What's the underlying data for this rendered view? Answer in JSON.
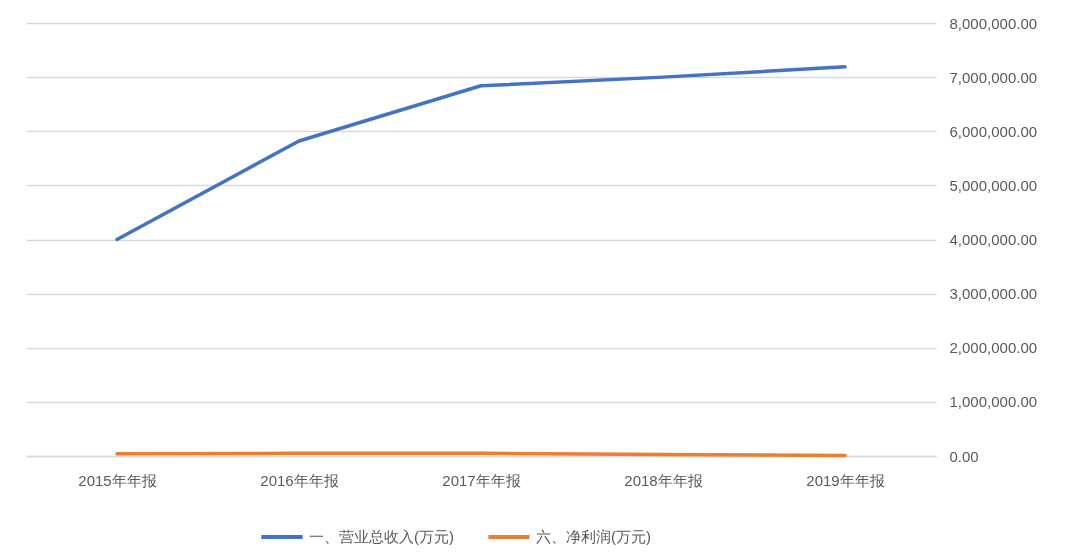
{
  "chart_data": {
    "type": "line",
    "categories": [
      "2015年年报",
      "2016年年报",
      "2017年年报",
      "2018年年报",
      "2019年年报"
    ],
    "series": [
      {
        "name": "一、营业总收入(万元)",
        "color": "#4472c4",
        "values": [
          4000000,
          5820000,
          6840000,
          7000000,
          7190000
        ]
      },
      {
        "name": "六、净利润(万元)",
        "color": "#ed7d31",
        "values": [
          40000,
          50000,
          50000,
          30000,
          10000
        ]
      }
    ],
    "ylim": [
      0,
      8000000
    ],
    "yticks": [
      {
        "value": 0,
        "label": "0.00"
      },
      {
        "value": 1000000,
        "label": "1,000,000.00"
      },
      {
        "value": 2000000,
        "label": "2,000,000.00"
      },
      {
        "value": 3000000,
        "label": "3,000,000.00"
      },
      {
        "value": 4000000,
        "label": "4,000,000.00"
      },
      {
        "value": 5000000,
        "label": "5,000,000.00"
      },
      {
        "value": 6000000,
        "label": "6,000,000.00"
      },
      {
        "value": 7000000,
        "label": "7,000,000.00"
      },
      {
        "value": 8000000,
        "label": "8,000,000.00"
      }
    ],
    "grid": "y",
    "legend": "bottom",
    "line_style": "solid"
  }
}
